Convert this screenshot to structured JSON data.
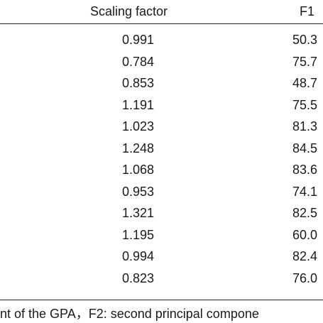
{
  "table": {
    "header": [
      "Scaling factor",
      "F1"
    ],
    "rows": [
      [
        "0.991",
        "50.3"
      ],
      [
        "0.784",
        "75.7"
      ],
      [
        "0.853",
        "48.7"
      ],
      [
        "1.191",
        "75.5"
      ],
      [
        "1.023",
        "81.3"
      ],
      [
        "1.248",
        "84.5"
      ],
      [
        "1.068",
        "83.6"
      ],
      [
        "0.953",
        "74.1"
      ],
      [
        "1.321",
        "82.5"
      ],
      [
        "1.195",
        "60.0"
      ],
      [
        "0.994",
        "82.4"
      ],
      [
        "0.823",
        "76.0"
      ]
    ]
  },
  "footnote": "nt of the GPA，F2: second principal compone"
}
